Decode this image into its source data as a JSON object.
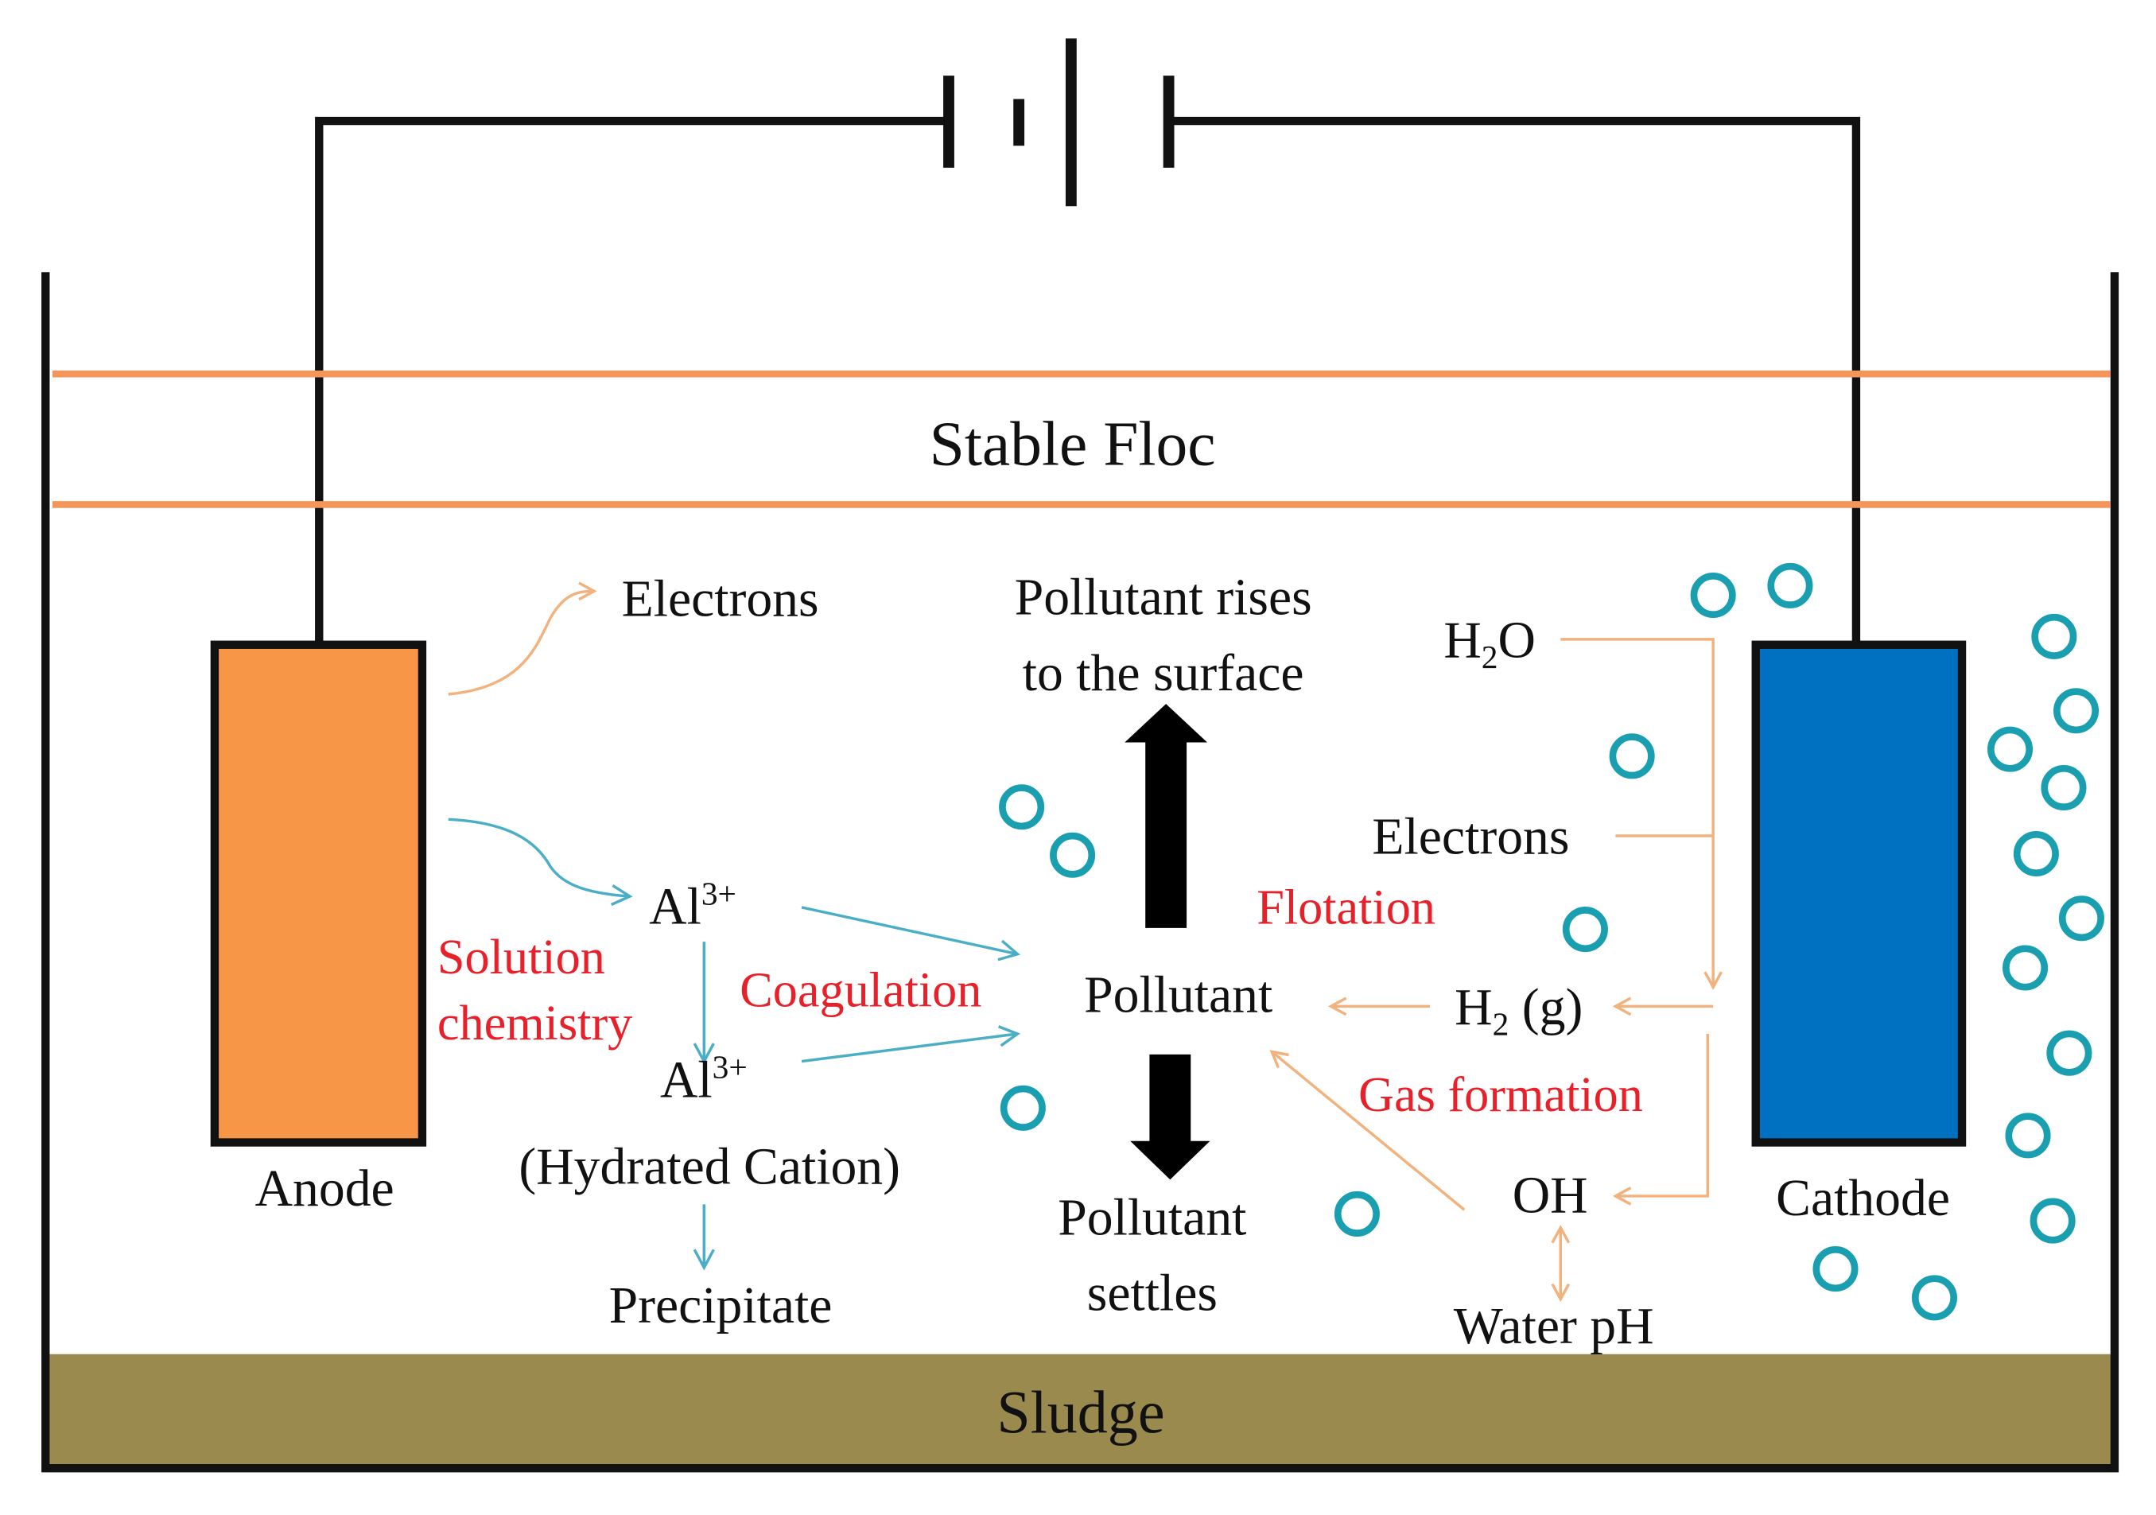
{
  "colors": {
    "anode": "#f79646",
    "cathode": "#0070c0",
    "floc_lines": "#f4955a",
    "sludge": "#9a8a4e",
    "bubbles": "#1a9fb0",
    "anode_arrows": "#4aaec6",
    "cathode_arrows": "#f2b27e",
    "process_labels": "#e8202a"
  },
  "labels": {
    "stable_floc": "Stable Floc",
    "sludge": "Sludge",
    "anode": "Anode",
    "cathode": "Cathode",
    "electrons_anode": "Electrons",
    "al3_base": "Al",
    "al3_sup": "3+",
    "al3_hydrated_base": "Al",
    "al3_hydrated_sup": "3+",
    "hydrated_cation": "(Hydrated Cation)",
    "precipitate": "Precipitate",
    "solution_line1": "Solution",
    "solution_line2": "chemistry",
    "coagulation": "Coagulation",
    "rises_line1": "Pollutant rises",
    "rises_line2": "to  the surface",
    "pollutant": "Pollutant",
    "settles_line1": "Pollutant",
    "settles_line2": "settles",
    "flotation": "Flotation",
    "h2o_h": "H",
    "h2o_sub": "2",
    "h2o_o": "O",
    "electrons_cathode": "Electrons",
    "h2g_h": "H",
    "h2g_sub": "2",
    "h2g_g": " (g)",
    "gas_formation": "Gas formation",
    "oh": "OH",
    "water_ph": "Water pH"
  },
  "icons": {
    "power_source": "battery-icon",
    "bubble": "gas-bubble-icon"
  }
}
